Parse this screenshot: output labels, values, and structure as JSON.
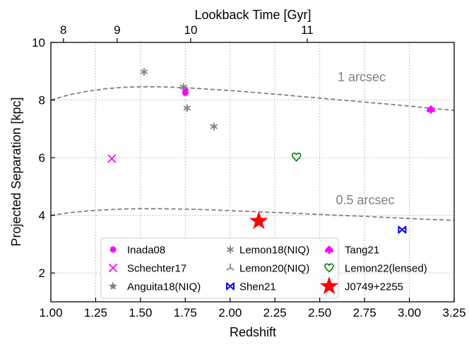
{
  "chart_data": {
    "type": "scatter",
    "xlabel": "Redshift",
    "ylabel": "Projected Separation [kpc]",
    "top_xlabel": "Lookback Time [Gyr]",
    "xlim": [
      1.0,
      3.25
    ],
    "ylim": [
      1,
      10
    ],
    "xticks": [
      1.0,
      1.25,
      1.5,
      1.75,
      2.0,
      2.25,
      2.5,
      2.75,
      3.0,
      3.25
    ],
    "xtick_labels": [
      "1.00",
      "1.25",
      "1.50",
      "1.75",
      "2.00",
      "2.25",
      "2.50",
      "2.75",
      "3.00",
      "3.25"
    ],
    "yticks": [
      2,
      4,
      6,
      8,
      10
    ],
    "ytick_labels": [
      "2",
      "4",
      "6",
      "8",
      "10"
    ],
    "top_ticks": [
      {
        "z": 1.07,
        "label": "8"
      },
      {
        "z": 1.37,
        "label": "9"
      },
      {
        "z": 1.78,
        "label": "10"
      },
      {
        "z": 2.43,
        "label": "11"
      }
    ],
    "grid": true,
    "curves": [
      {
        "name": "1 arcsec",
        "label": "1 arcsec",
        "x": [
          1.0,
          1.1,
          1.2,
          1.3,
          1.4,
          1.5,
          1.6,
          1.7,
          1.8,
          1.9,
          2.0,
          2.1,
          2.2,
          2.3,
          2.4,
          2.5,
          2.6,
          2.7,
          2.8,
          2.9,
          3.0,
          3.1,
          3.2,
          3.25
        ],
        "y": [
          8.0,
          8.18,
          8.3,
          8.39,
          8.44,
          8.46,
          8.46,
          8.44,
          8.41,
          8.37,
          8.33,
          8.28,
          8.23,
          8.18,
          8.12,
          8.07,
          8.01,
          7.96,
          7.9,
          7.85,
          7.79,
          7.73,
          7.67,
          7.64
        ],
        "color": "#808080",
        "label_pos": {
          "x": 2.6,
          "y": 8.65
        }
      },
      {
        "name": "0.5 arcsec",
        "label": "0.5 arcsec",
        "x": [
          1.0,
          1.1,
          1.2,
          1.3,
          1.4,
          1.5,
          1.6,
          1.7,
          1.8,
          1.9,
          2.0,
          2.1,
          2.2,
          2.3,
          2.4,
          2.5,
          2.6,
          2.7,
          2.8,
          2.9,
          3.0,
          3.1,
          3.2,
          3.25
        ],
        "y": [
          4.0,
          4.09,
          4.15,
          4.19,
          4.22,
          4.23,
          4.23,
          4.22,
          4.21,
          4.19,
          4.16,
          4.14,
          4.11,
          4.09,
          4.06,
          4.03,
          4.0,
          3.98,
          3.95,
          3.92,
          3.89,
          3.86,
          3.84,
          3.82
        ],
        "color": "#808080",
        "label_pos": {
          "x": 2.59,
          "y": 4.38
        }
      }
    ],
    "series": [
      {
        "name": "Inada08",
        "marker": "asterisk8",
        "color": "#ff00ff",
        "points": [
          {
            "x": 1.75,
            "y": 8.35
          },
          {
            "x": 1.75,
            "y": 8.25
          }
        ]
      },
      {
        "name": "Schechter17",
        "marker": "x",
        "color": "#ff00ff",
        "points": [
          {
            "x": 1.34,
            "y": 5.97
          }
        ]
      },
      {
        "name": "Anguita18(NIQ)",
        "marker": "star",
        "color": "#808080",
        "points": []
      },
      {
        "name": "Lemon18(NIQ)",
        "marker": "asterisk",
        "color": "#808080",
        "points": [
          {
            "x": 1.52,
            "y": 8.98
          },
          {
            "x": 1.74,
            "y": 8.45
          },
          {
            "x": 1.76,
            "y": 7.72
          },
          {
            "x": 1.91,
            "y": 7.08
          }
        ]
      },
      {
        "name": "Lemon20(NIQ)",
        "marker": "tri",
        "color": "#808080",
        "points": []
      },
      {
        "name": "Shen21",
        "marker": "bowtie",
        "color": "#0000ff",
        "points": [
          {
            "x": 2.96,
            "y": 3.5
          }
        ]
      },
      {
        "name": "Tang21",
        "marker": "spade",
        "color": "#ff00ff",
        "points": [
          {
            "x": 3.12,
            "y": 7.68
          }
        ]
      },
      {
        "name": "Lemon22(lensed)",
        "marker": "heart",
        "color": "#008000",
        "points": [
          {
            "x": 2.37,
            "y": 6.02
          }
        ]
      },
      {
        "name": "J0749+2255",
        "marker": "bigstar",
        "color": "#ff0000",
        "points": [
          {
            "x": 2.16,
            "y": 3.8
          }
        ]
      }
    ],
    "legend": {
      "placement": "lower-center",
      "columns": [
        [
          "Inada08",
          "Schechter17",
          "Anguita18(NIQ)"
        ],
        [
          "Lemon18(NIQ)",
          "Lemon20(NIQ)",
          "Shen21"
        ],
        [
          "Tang21",
          "Lemon22(lensed)",
          "J0749+2255"
        ]
      ]
    }
  }
}
